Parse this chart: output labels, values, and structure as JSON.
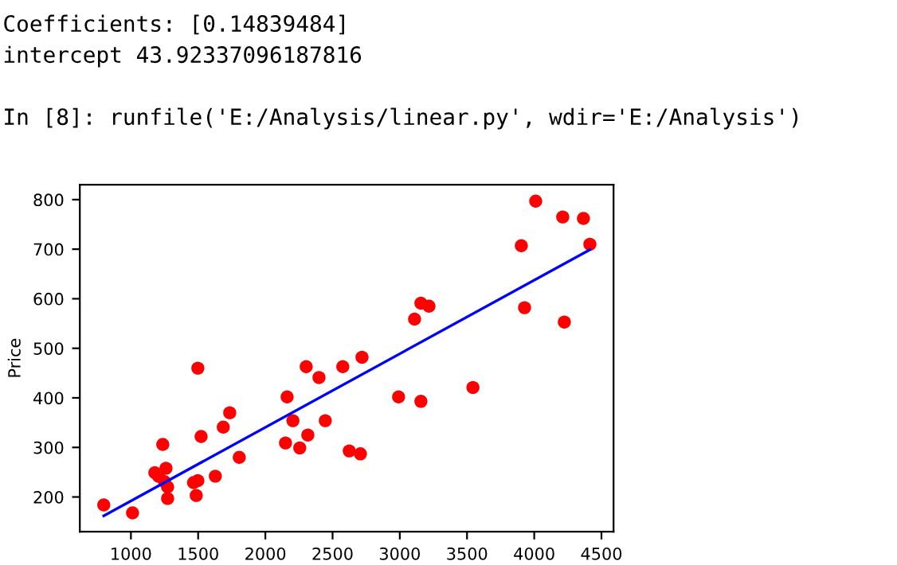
{
  "chart_data": {
    "type": "scatter",
    "ylabel": "Price",
    "annotations": [
      "Coefficients: [0.14839484]",
      "intercept 43.92337096187816",
      "In [8]: runfile('E:/Analysis/linear.py', wdir='E:/Analysis')"
    ],
    "xlim": [
      620,
      4590
    ],
    "ylim": [
      130,
      830
    ],
    "xticks": [
      1000,
      1500,
      2000,
      2500,
      3000,
      3500,
      4000,
      4500
    ],
    "yticks": [
      200,
      300,
      400,
      500,
      600,
      700,
      800
    ],
    "grid": false,
    "legend": false,
    "series": [
      {
        "color": "#ff0000",
        "marker": "circle",
        "x": [
          798,
          1012,
          1178,
          1205,
          1237,
          1261,
          1250,
          1273,
          1273,
          1466,
          1498,
          1486,
          1498,
          1522,
          1628,
          1687,
          1735,
          1806,
          2150,
          2162,
          2205,
          2256,
          2304,
          2316,
          2399,
          2446,
          2576,
          2624,
          2707,
          2719,
          2991,
          3110,
          3157,
          3157,
          3217,
          3544,
          3904,
          3928,
          4011,
          4212,
          4224,
          4366,
          4414
        ],
        "values": [
          184,
          168,
          249,
          242,
          306,
          258,
          231,
          220,
          197,
          229,
          233,
          203,
          460,
          322,
          242,
          341,
          370,
          280,
          309,
          402,
          354,
          299,
          463,
          325,
          441,
          354,
          463,
          293,
          287,
          482,
          402,
          559,
          591,
          393,
          585,
          421,
          707,
          582,
          797,
          765,
          553,
          762,
          710
        ]
      },
      {
        "type": "line",
        "color": "#0000ff",
        "marker": "none",
        "line_style": "solid",
        "x": [
          798,
          4414
        ],
        "values": [
          162,
          699
        ]
      }
    ]
  }
}
